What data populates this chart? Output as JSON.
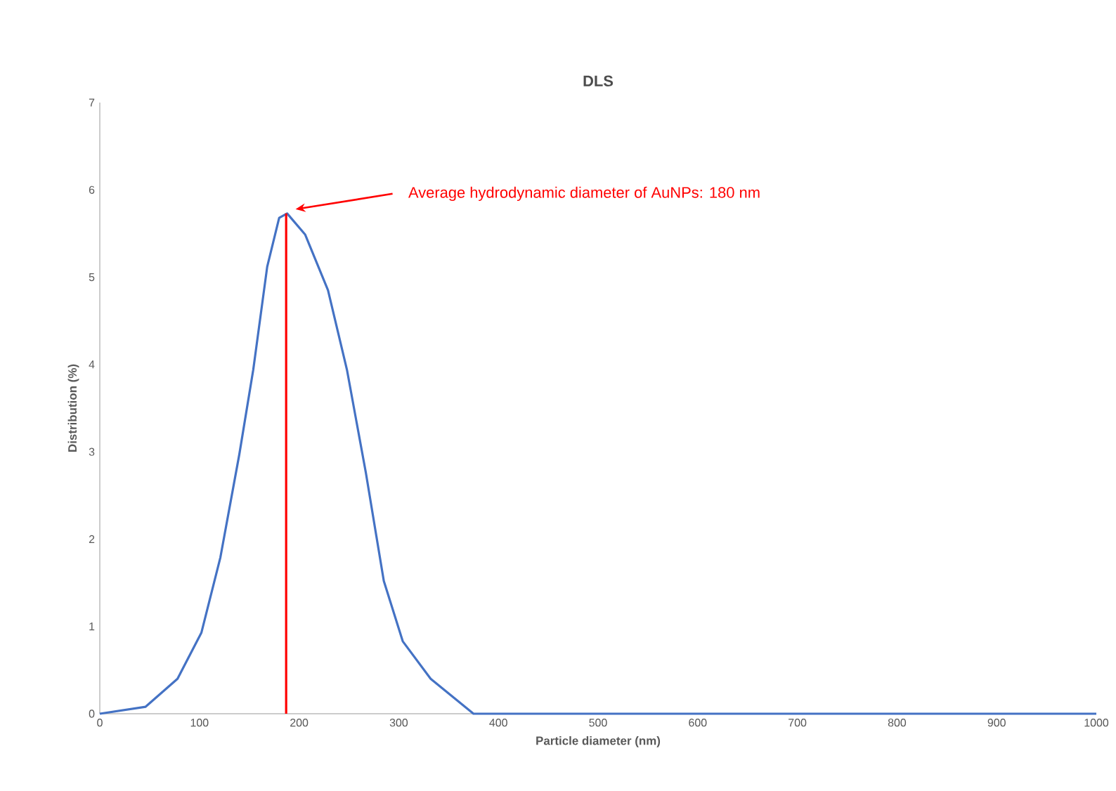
{
  "chart_data": {
    "type": "line",
    "title": "DLS",
    "xlabel": "Particle diameter (nm)",
    "ylabel": "Distribution (%)",
    "xlim": [
      0,
      1000
    ],
    "ylim": [
      0,
      7
    ],
    "xticks": [
      0,
      100,
      200,
      300,
      400,
      500,
      600,
      700,
      800,
      900,
      1000
    ],
    "yticks": [
      0,
      1,
      2,
      3,
      4,
      5,
      6,
      7
    ],
    "series": [
      {
        "color": "#4472c4",
        "x": [
          0,
          46,
          78,
          102,
          121,
          140,
          154,
          168,
          180,
          188,
          206,
          229,
          248,
          267,
          285,
          304,
          332,
          375,
          400,
          500,
          600,
          700,
          800,
          900,
          1000
        ],
        "values": [
          0,
          0.08,
          0.4,
          0.93,
          1.79,
          2.97,
          3.94,
          5.12,
          5.68,
          5.73,
          5.49,
          4.85,
          3.94,
          2.76,
          1.52,
          0.83,
          0.4,
          0,
          0,
          0,
          0,
          0,
          0,
          0,
          0
        ]
      }
    ],
    "ref_lines": [
      {
        "axis": "x",
        "value": 187,
        "color": "#ff0000",
        "line_style": "solid"
      }
    ],
    "annotations": [
      "Average hydrodynamic diameter of AuNPs: 180 nm"
    ],
    "grid": false,
    "marker": "none",
    "line_style": "solid"
  }
}
